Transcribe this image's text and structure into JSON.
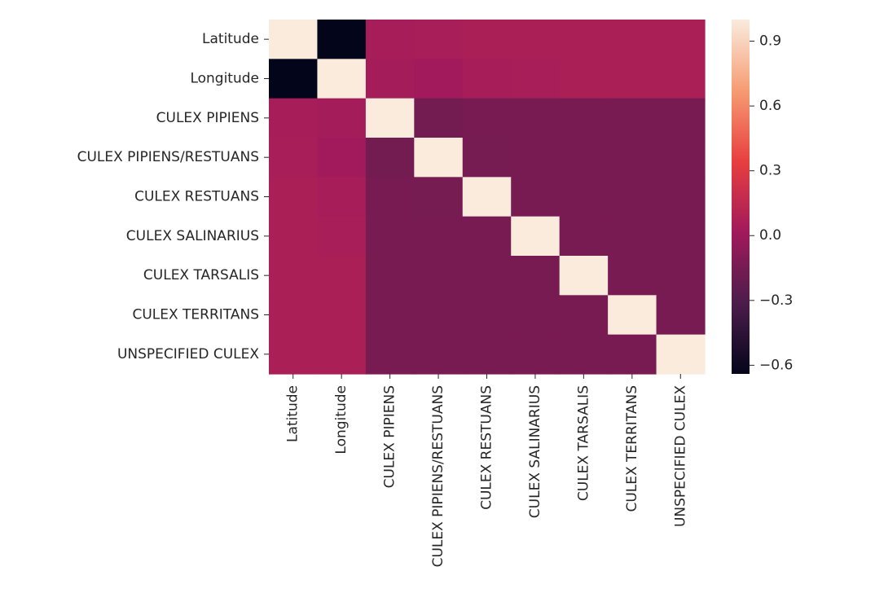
{
  "chart_data": {
    "type": "heatmap",
    "rows": [
      "Latitude",
      "Longitude",
      "CULEX PIPIENS",
      "CULEX PIPIENS/RESTUANS",
      "CULEX RESTUANS",
      "CULEX SALINARIUS",
      "CULEX TARSALIS",
      "CULEX TERRITANS",
      "UNSPECIFIED CULEX"
    ],
    "cols": [
      "Latitude",
      "Longitude",
      "CULEX PIPIENS",
      "CULEX PIPIENS/RESTUANS",
      "CULEX RESTUANS",
      "CULEX SALINARIUS",
      "CULEX TARSALIS",
      "CULEX TERRITANS",
      "UNSPECIFIED CULEX"
    ],
    "values": [
      [
        1.0,
        -0.64,
        0.04,
        0.05,
        0.06,
        0.06,
        0.06,
        0.06,
        0.06
      ],
      [
        -0.64,
        1.0,
        0.03,
        0.02,
        0.04,
        0.05,
        0.06,
        0.06,
        0.06
      ],
      [
        0.04,
        0.03,
        1.0,
        -0.16,
        -0.14,
        -0.14,
        -0.14,
        -0.14,
        -0.14
      ],
      [
        0.05,
        0.02,
        -0.16,
        1.0,
        -0.15,
        -0.14,
        -0.14,
        -0.14,
        -0.14
      ],
      [
        0.06,
        0.04,
        -0.14,
        -0.15,
        1.0,
        -0.14,
        -0.14,
        -0.14,
        -0.14
      ],
      [
        0.06,
        0.05,
        -0.14,
        -0.14,
        -0.14,
        1.0,
        -0.14,
        -0.14,
        -0.14
      ],
      [
        0.06,
        0.06,
        -0.14,
        -0.14,
        -0.14,
        -0.14,
        1.0,
        -0.14,
        -0.14
      ],
      [
        0.06,
        0.06,
        -0.14,
        -0.14,
        -0.14,
        -0.14,
        -0.14,
        1.0,
        -0.14
      ],
      [
        0.06,
        0.06,
        -0.14,
        -0.14,
        -0.14,
        -0.14,
        -0.14,
        -0.14,
        1.0
      ]
    ],
    "colorbar": {
      "vmin": -0.64,
      "vmax": 1.0,
      "ticks": [
        0.9,
        0.6,
        0.3,
        0.0,
        -0.3,
        -0.6
      ],
      "tick_labels": [
        "0.9",
        "0.6",
        "0.3",
        "0.0",
        "−0.3",
        "−0.6"
      ],
      "colormap": "rocket",
      "colormap_stops": [
        "#03051a",
        "#4c1d4b",
        "#a11a5b",
        "#e83f3f",
        "#f69c73",
        "#faebdd"
      ]
    }
  }
}
